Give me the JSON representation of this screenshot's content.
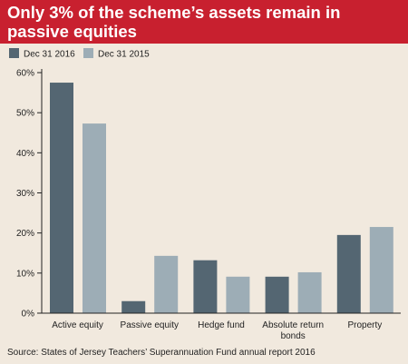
{
  "title": "Only 3% of the scheme’s assets remain in passive equities",
  "source": "Source: States of Jersey Teachers’ Superannuation Fund annual report 2016",
  "chart_data": {
    "type": "bar",
    "categories": [
      [
        "Active equity"
      ],
      [
        "Passive equity"
      ],
      [
        "Hedge fund"
      ],
      [
        "Absolute return",
        "bonds"
      ],
      [
        "Property"
      ]
    ],
    "series": [
      {
        "name": "Dec 31 2016",
        "color": "#546672",
        "values": [
          57.5,
          3,
          13.2,
          9.1,
          19.5
        ]
      },
      {
        "name": "Dec 31 2015",
        "color": "#9dadb6",
        "values": [
          47.3,
          14.3,
          9.1,
          10.2,
          21.5
        ]
      }
    ],
    "yticks": [
      "0%",
      "10%",
      "20%",
      "30%",
      "40%",
      "50%",
      "60%"
    ],
    "ylim": [
      0,
      60
    ],
    "legend_position": "top-left",
    "grid": false
  }
}
